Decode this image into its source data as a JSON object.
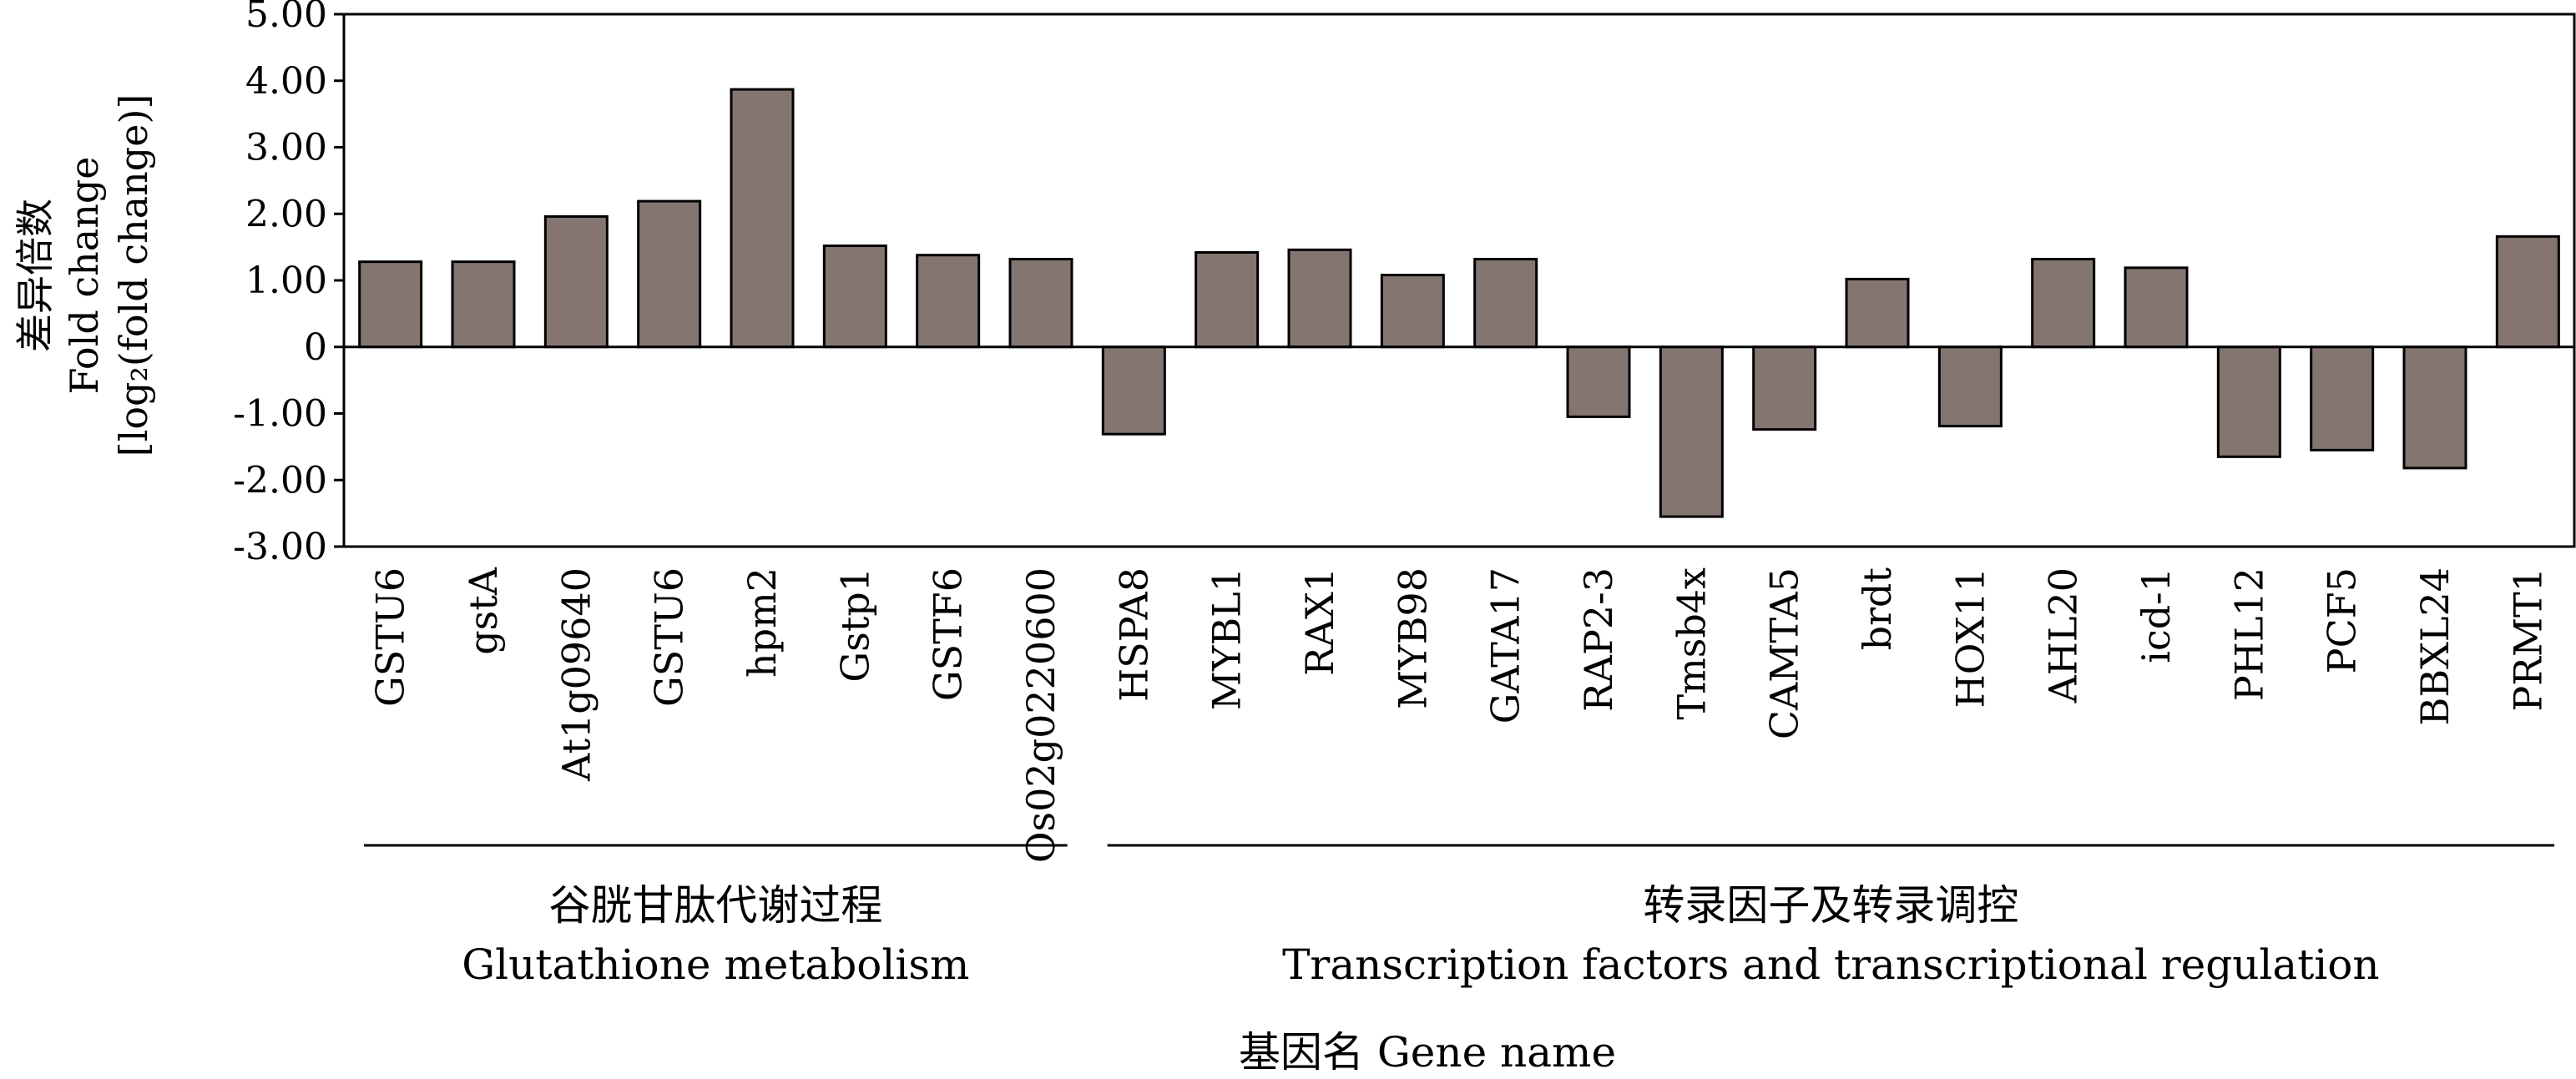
{
  "chart_data": {
    "type": "bar",
    "categories": [
      "GSTU6",
      "gstA",
      "At1g09640",
      "GSTU6",
      "hpm2",
      "Gstp1",
      "GSTF6",
      "Os02g0220600",
      "HSPA8",
      "MYBL1",
      "RAX1",
      "MYB98",
      "GATA17",
      "RAP2-3",
      "Tmsb4x",
      "CAMTA5",
      "brdt",
      "HOX11",
      "AHL20",
      "icd-1",
      "PHL12",
      "PCF5",
      "BBXL24",
      "PRMT1"
    ],
    "values": [
      1.28,
      1.28,
      1.96,
      2.19,
      3.87,
      1.52,
      1.38,
      1.32,
      -1.31,
      1.42,
      1.46,
      1.08,
      1.32,
      -1.05,
      -2.55,
      -1.24,
      1.02,
      -1.19,
      1.32,
      1.19,
      -1.65,
      -1.55,
      -1.82,
      1.66
    ],
    "ylim": [
      -3,
      5
    ],
    "yticks": [
      "5.00",
      "4.00",
      "3.00",
      "2.00",
      "1.00",
      "0",
      "-1.00",
      "-2.00",
      "-3.00"
    ],
    "ylabel": [
      "差异倍数",
      "Fold change",
      "[log₂(fold change)]"
    ],
    "xlabel": "基因名 Gene name",
    "groups": [
      {
        "label_zh": "谷胱甘肽代谢过程",
        "label_en": "Glutathione metabolism",
        "start": 0,
        "end": 7
      },
      {
        "label_zh": "转录因子及转录调控",
        "label_en": "Transcription factors and transcriptional regulation",
        "start": 8,
        "end": 23
      }
    ],
    "bar_color": "#847570",
    "grid": false
  }
}
